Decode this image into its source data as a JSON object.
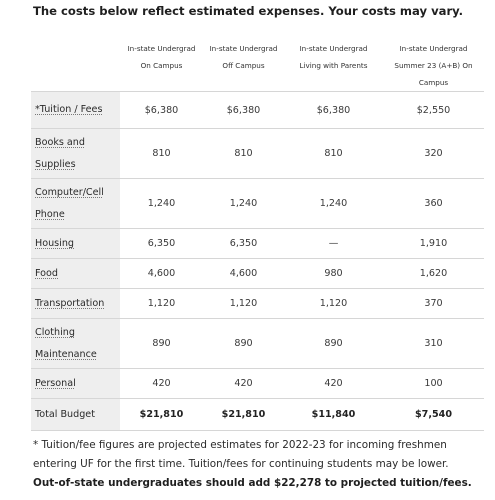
{
  "intro": "The costs below reflect estimated expenses.  Your costs may vary.",
  "table": {
    "headers": [
      "",
      [
        "In-state Undergrad",
        "On Campus"
      ],
      [
        "In-state Undergrad",
        "Off Campus"
      ],
      [
        "In-state Undergrad",
        "Living with Parents"
      ],
      [
        "In-state Undergrad",
        "Summer 23 (A+B) On",
        "Campus"
      ]
    ],
    "rows": [
      {
        "label": [
          "*Tuition / Fees"
        ],
        "values": [
          "$6,380",
          "$6,380",
          "$6,380",
          "$2,550"
        ]
      },
      {
        "label": [
          "Books and",
          "Supplies"
        ],
        "values": [
          "810",
          "810",
          "810",
          "320"
        ]
      },
      {
        "label": [
          "Computer/Cell",
          "Phone"
        ],
        "values": [
          "1,240",
          "1,240",
          "1,240",
          "360"
        ]
      },
      {
        "label": [
          "Housing"
        ],
        "values": [
          "6,350",
          "6,350",
          "—",
          "1,910"
        ]
      },
      {
        "label": [
          "Food"
        ],
        "values": [
          "4,600",
          "4,600",
          "980",
          "1,620"
        ]
      },
      {
        "label": [
          "Transportation"
        ],
        "values": [
          "1,120",
          "1,120",
          "1,120",
          "370"
        ]
      },
      {
        "label": [
          "Clothing",
          "Maintenance"
        ],
        "values": [
          "890",
          "890",
          "890",
          "310"
        ]
      },
      {
        "label": [
          "Personal"
        ],
        "values": [
          "420",
          "420",
          "420",
          "100"
        ]
      }
    ],
    "total": {
      "label": "Total Budget",
      "values": [
        "$21,810",
        "$21,810",
        "$11,840",
        "$7,540"
      ]
    }
  },
  "footnote": {
    "text": "* Tuition/fee figures are projected estimates for 2022-23 for incoming freshmen entering UF for the first time. Tuition/fees for continuing students may be lower.",
    "bold": "Out-of-state undergraduates should add $22,278 to projected tuition/fees."
  }
}
